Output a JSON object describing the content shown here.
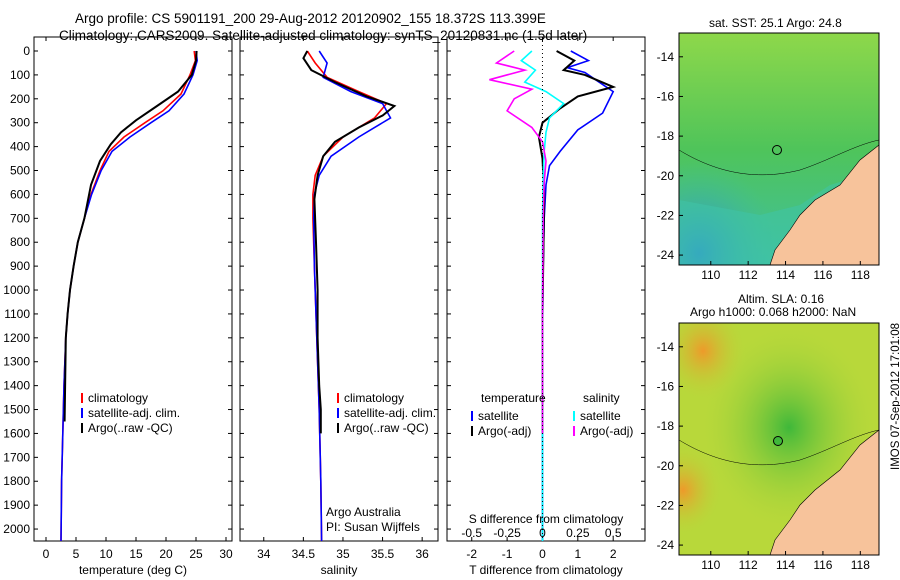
{
  "header": {
    "title_line1": "Argo profile: CS 5901191_200 29-Aug-2012 20120902_155 18.372S 113.399E",
    "title_line2": "Climatology: CARS2009. Satellite-adjusted climatology: synTS_20120831.nc (1.5d later)"
  },
  "colors": {
    "climatology": "#ff0000",
    "satellite": "#0000ff",
    "argo": "#000000",
    "satellite_t_diff": "#00ffff",
    "argo_s_diff": "#ff00ff"
  },
  "side_stamp": "IMOS 07-Sep-2012 17:01:08",
  "chart_data": [
    {
      "id": "temperature",
      "type": "line",
      "xlabel": "temperature (deg C)",
      "xlim": [
        -2,
        31
      ],
      "xticks": [
        0,
        5,
        10,
        15,
        20,
        25,
        30
      ],
      "ylim": [
        0,
        2050
      ],
      "yticks": [
        0,
        100,
        200,
        300,
        400,
        500,
        600,
        700,
        800,
        900,
        1000,
        1100,
        1200,
        1300,
        1400,
        1500,
        1600,
        1700,
        1800,
        1900,
        2000
      ],
      "y_reversed": true,
      "legend": [
        "climatology",
        "satellite-adj. clim.",
        "Argo(..raw -QC)"
      ],
      "series": [
        {
          "name": "climatology",
          "color": "#ff0000",
          "x": [
            24.7,
            24.9,
            24.0,
            22.5,
            19.5,
            16.5,
            13.0,
            10.5,
            9.0,
            7.5,
            6.4,
            5.3,
            4.6,
            4.0,
            3.6,
            3.3,
            3.0,
            2.8,
            2.6,
            2.5
          ],
          "y": [
            0,
            40,
            100,
            180,
            250,
            300,
            360,
            420,
            500,
            600,
            700,
            800,
            900,
            1000,
            1100,
            1200,
            1400,
            1600,
            1800,
            2050
          ]
        },
        {
          "name": "satellite-adj. clim.",
          "color": "#0000ff",
          "x": [
            25.0,
            25.2,
            24.5,
            23.0,
            20.5,
            17.5,
            14.0,
            11.0,
            9.2,
            7.6,
            6.4,
            5.3,
            4.6,
            4.0,
            3.6,
            3.3,
            3.0,
            2.8,
            2.6,
            2.5
          ],
          "y": [
            0,
            40,
            100,
            180,
            250,
            300,
            360,
            420,
            500,
            600,
            700,
            800,
            900,
            1000,
            1100,
            1200,
            1400,
            1600,
            1800,
            2050
          ]
        },
        {
          "name": "Argo(..raw -QC)",
          "color": "#000000",
          "x": [
            25.1,
            25.0,
            24.3,
            22.0,
            18.5,
            15.0,
            12.5,
            10.8,
            9.0,
            7.5,
            6.4,
            5.3,
            4.6,
            4.0,
            3.6,
            3.3,
            3.1
          ],
          "y": [
            0,
            40,
            100,
            170,
            230,
            290,
            340,
            390,
            460,
            560,
            700,
            800,
            900,
            1000,
            1100,
            1200,
            1550
          ]
        }
      ]
    },
    {
      "id": "salinity",
      "type": "line",
      "xlabel": "salinity",
      "xlim": [
        33.7,
        36.2
      ],
      "xticks": [
        34,
        34.5,
        35,
        35.5,
        36
      ],
      "ylim": [
        0,
        2050
      ],
      "y_reversed": true,
      "legend": [
        "climatology",
        "satellite-adj. clim.",
        "Argo(..raw -QC)"
      ],
      "annotation": [
        "Argo Australia",
        "PI: Susan Wijffels"
      ],
      "series": [
        {
          "name": "climatology",
          "color": "#ff0000",
          "x": [
            34.55,
            34.65,
            34.8,
            35.2,
            35.55,
            35.4,
            35.0,
            34.75,
            34.65,
            34.62,
            34.62,
            34.64,
            34.66,
            34.68,
            34.7,
            34.72,
            34.73
          ],
          "y": [
            0,
            50,
            110,
            170,
            220,
            280,
            360,
            440,
            520,
            600,
            700,
            900,
            1100,
            1300,
            1500,
            1800,
            2050
          ]
        },
        {
          "name": "satellite-adj. clim.",
          "color": "#0000ff",
          "x": [
            34.7,
            34.8,
            34.75,
            35.1,
            35.5,
            35.6,
            35.2,
            34.85,
            34.7,
            34.64,
            34.63,
            34.64,
            34.66,
            34.68,
            34.7,
            34.72,
            34.73
          ],
          "y": [
            0,
            50,
            110,
            170,
            220,
            280,
            360,
            440,
            520,
            600,
            700,
            900,
            1100,
            1300,
            1500,
            1800,
            2050
          ]
        },
        {
          "name": "Argo(..raw -QC)",
          "color": "#000000",
          "x": [
            34.55,
            34.5,
            34.6,
            34.9,
            35.3,
            35.65,
            35.5,
            35.2,
            34.9,
            34.75,
            34.68,
            34.64,
            34.66,
            34.68,
            34.68,
            34.7,
            34.72,
            34.72
          ],
          "y": [
            0,
            30,
            80,
            130,
            190,
            230,
            270,
            320,
            380,
            440,
            520,
            620,
            800,
            1000,
            1200,
            1400,
            1500,
            1600
          ]
        }
      ]
    },
    {
      "id": "difference",
      "type": "line",
      "xlabel": "T difference from climatology",
      "xlabel2": "S difference from climatology",
      "xlim": [
        -2.7,
        2.9
      ],
      "xticks": [
        -2,
        -1,
        0,
        1,
        2
      ],
      "xticks2_values": [
        -0.5,
        -0.25,
        0,
        0.25,
        0.5
      ],
      "xticks2_labels": [
        "-0.5",
        "-0.25",
        "0",
        "0.25",
        "0.5"
      ],
      "ylim": [
        0,
        2050
      ],
      "y_reversed": true,
      "legend_titles": [
        "temperature",
        "salinity"
      ],
      "legend": [
        "satellite",
        "Argo(-adj)",
        "satellite",
        "Argo(-adj)"
      ],
      "series": [
        {
          "name": "temperature satellite",
          "color": "#0000ff",
          "x": [
            0.8,
            1.3,
            0.7,
            1.2,
            1.5,
            2.0,
            1.7,
            1.0,
            0.5,
            0.2,
            0.1,
            0.05,
            0.02,
            0.0,
            0.0,
            0.0
          ],
          "y": [
            0,
            40,
            70,
            90,
            120,
            170,
            260,
            330,
            420,
            480,
            560,
            700,
            900,
            1200,
            1600,
            2050
          ]
        },
        {
          "name": "temperature Argo(-adj)",
          "color": "#000000",
          "x": [
            0.4,
            0.9,
            0.6,
            1.2,
            2.0,
            1.0,
            0.5,
            0.0,
            -0.1,
            0.0,
            0.05,
            0.03,
            0.0,
            0.0
          ],
          "y": [
            0,
            40,
            80,
            100,
            150,
            190,
            240,
            300,
            360,
            450,
            600,
            800,
            1100,
            1600
          ]
        },
        {
          "name": "salinity satellite",
          "color": "#00ffff",
          "x": [
            -0.3,
            -0.6,
            -0.2,
            -0.5,
            0.1,
            0.6,
            0.2,
            0.1,
            0.05,
            0.02,
            0.0,
            0.0,
            0.0
          ],
          "y": [
            0,
            40,
            80,
            130,
            170,
            220,
            280,
            340,
            420,
            520,
            700,
            1200,
            2050
          ]
        },
        {
          "name": "salinity Argo(-adj)",
          "color": "#ff00ff",
          "x": [
            -0.8,
            -1.3,
            -0.5,
            -1.5,
            -0.3,
            -0.8,
            -1.0,
            -0.3,
            0.0,
            0.1,
            0.05,
            0.02,
            0.0,
            0.0
          ],
          "y": [
            0,
            50,
            80,
            120,
            160,
            200,
            250,
            320,
            380,
            460,
            550,
            700,
            1100,
            1600
          ]
        }
      ]
    },
    {
      "id": "sst_map",
      "type": "heatmap",
      "title": "sat. SST: 25.1  Argo: 24.8",
      "xticks": [
        110,
        112,
        114,
        116,
        118
      ],
      "yticks": [
        -14,
        -16,
        -18,
        -20,
        -22,
        -24
      ],
      "xlim": [
        108.3,
        119.0
      ],
      "ylim": [
        -24.5,
        -12.8
      ],
      "marker": {
        "lon": 113.4,
        "lat": -18.4
      }
    },
    {
      "id": "sla_map",
      "type": "heatmap",
      "title_line1": "Altim. SLA: 0.16",
      "title_line2": "Argo h1000: 0.068 h2000: NaN",
      "xticks": [
        110,
        112,
        114,
        116,
        118
      ],
      "yticks": [
        -14,
        -16,
        -18,
        -20,
        -22,
        -24
      ],
      "xlim": [
        108.3,
        119.0
      ],
      "ylim": [
        -24.5,
        -12.8
      ],
      "marker": {
        "lon": 113.4,
        "lat": -18.4
      }
    }
  ]
}
